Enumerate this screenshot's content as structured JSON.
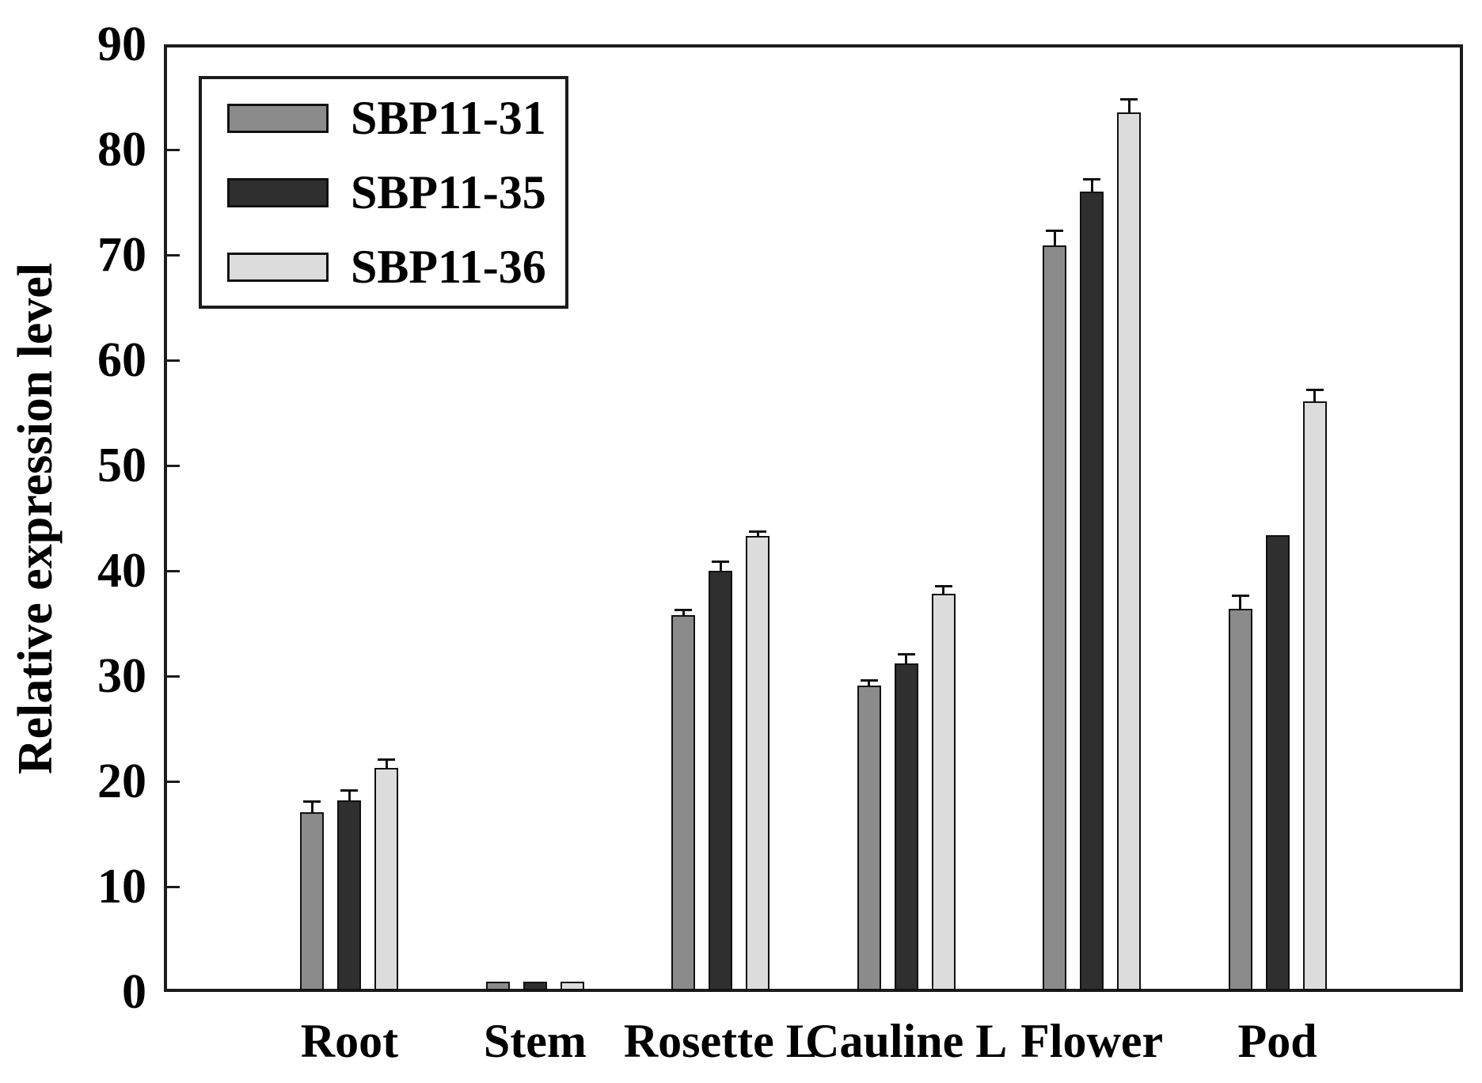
{
  "chart_data": {
    "type": "bar",
    "title": "",
    "xlabel": "",
    "ylabel": "Relative expression level",
    "ylim": [
      0,
      90
    ],
    "ytick_step": 10,
    "ytick_labels": [
      "0",
      "10",
      "20",
      "30",
      "40",
      "50",
      "60",
      "70",
      "80",
      "90"
    ],
    "grid": false,
    "legend_position": "upper-left",
    "error_bars": "upper-capped",
    "categories": [
      "Root",
      "Stem",
      "Rosette L",
      "Cauline L",
      "Flower",
      "Pod"
    ],
    "series": [
      {
        "name": "SBP11-31",
        "color": "#8b8b8b",
        "values": [
          17.1,
          1.0,
          35.8,
          29.1,
          70.9,
          36.4
        ],
        "errors": [
          1.0,
          0,
          0.5,
          0.5,
          1.4,
          1.2
        ]
      },
      {
        "name": "SBP11-35",
        "color": "#2f2f2f",
        "values": [
          18.2,
          1.0,
          40.0,
          31.2,
          76.0,
          43.4
        ],
        "errors": [
          0.9,
          0,
          0.9,
          0.9,
          1.2,
          0
        ]
      },
      {
        "name": "SBP11-36",
        "color": "#dcdcdc",
        "values": [
          21.3,
          1.0,
          43.3,
          37.8,
          83.5,
          56.1
        ],
        "errors": [
          0.8,
          0,
          0.4,
          0.7,
          1.3,
          1.1
        ]
      }
    ]
  },
  "style_colors": {
    "axis": "#1c1c1c",
    "bar_outline": "#111111",
    "text": "#000000",
    "background": "#ffffff"
  }
}
